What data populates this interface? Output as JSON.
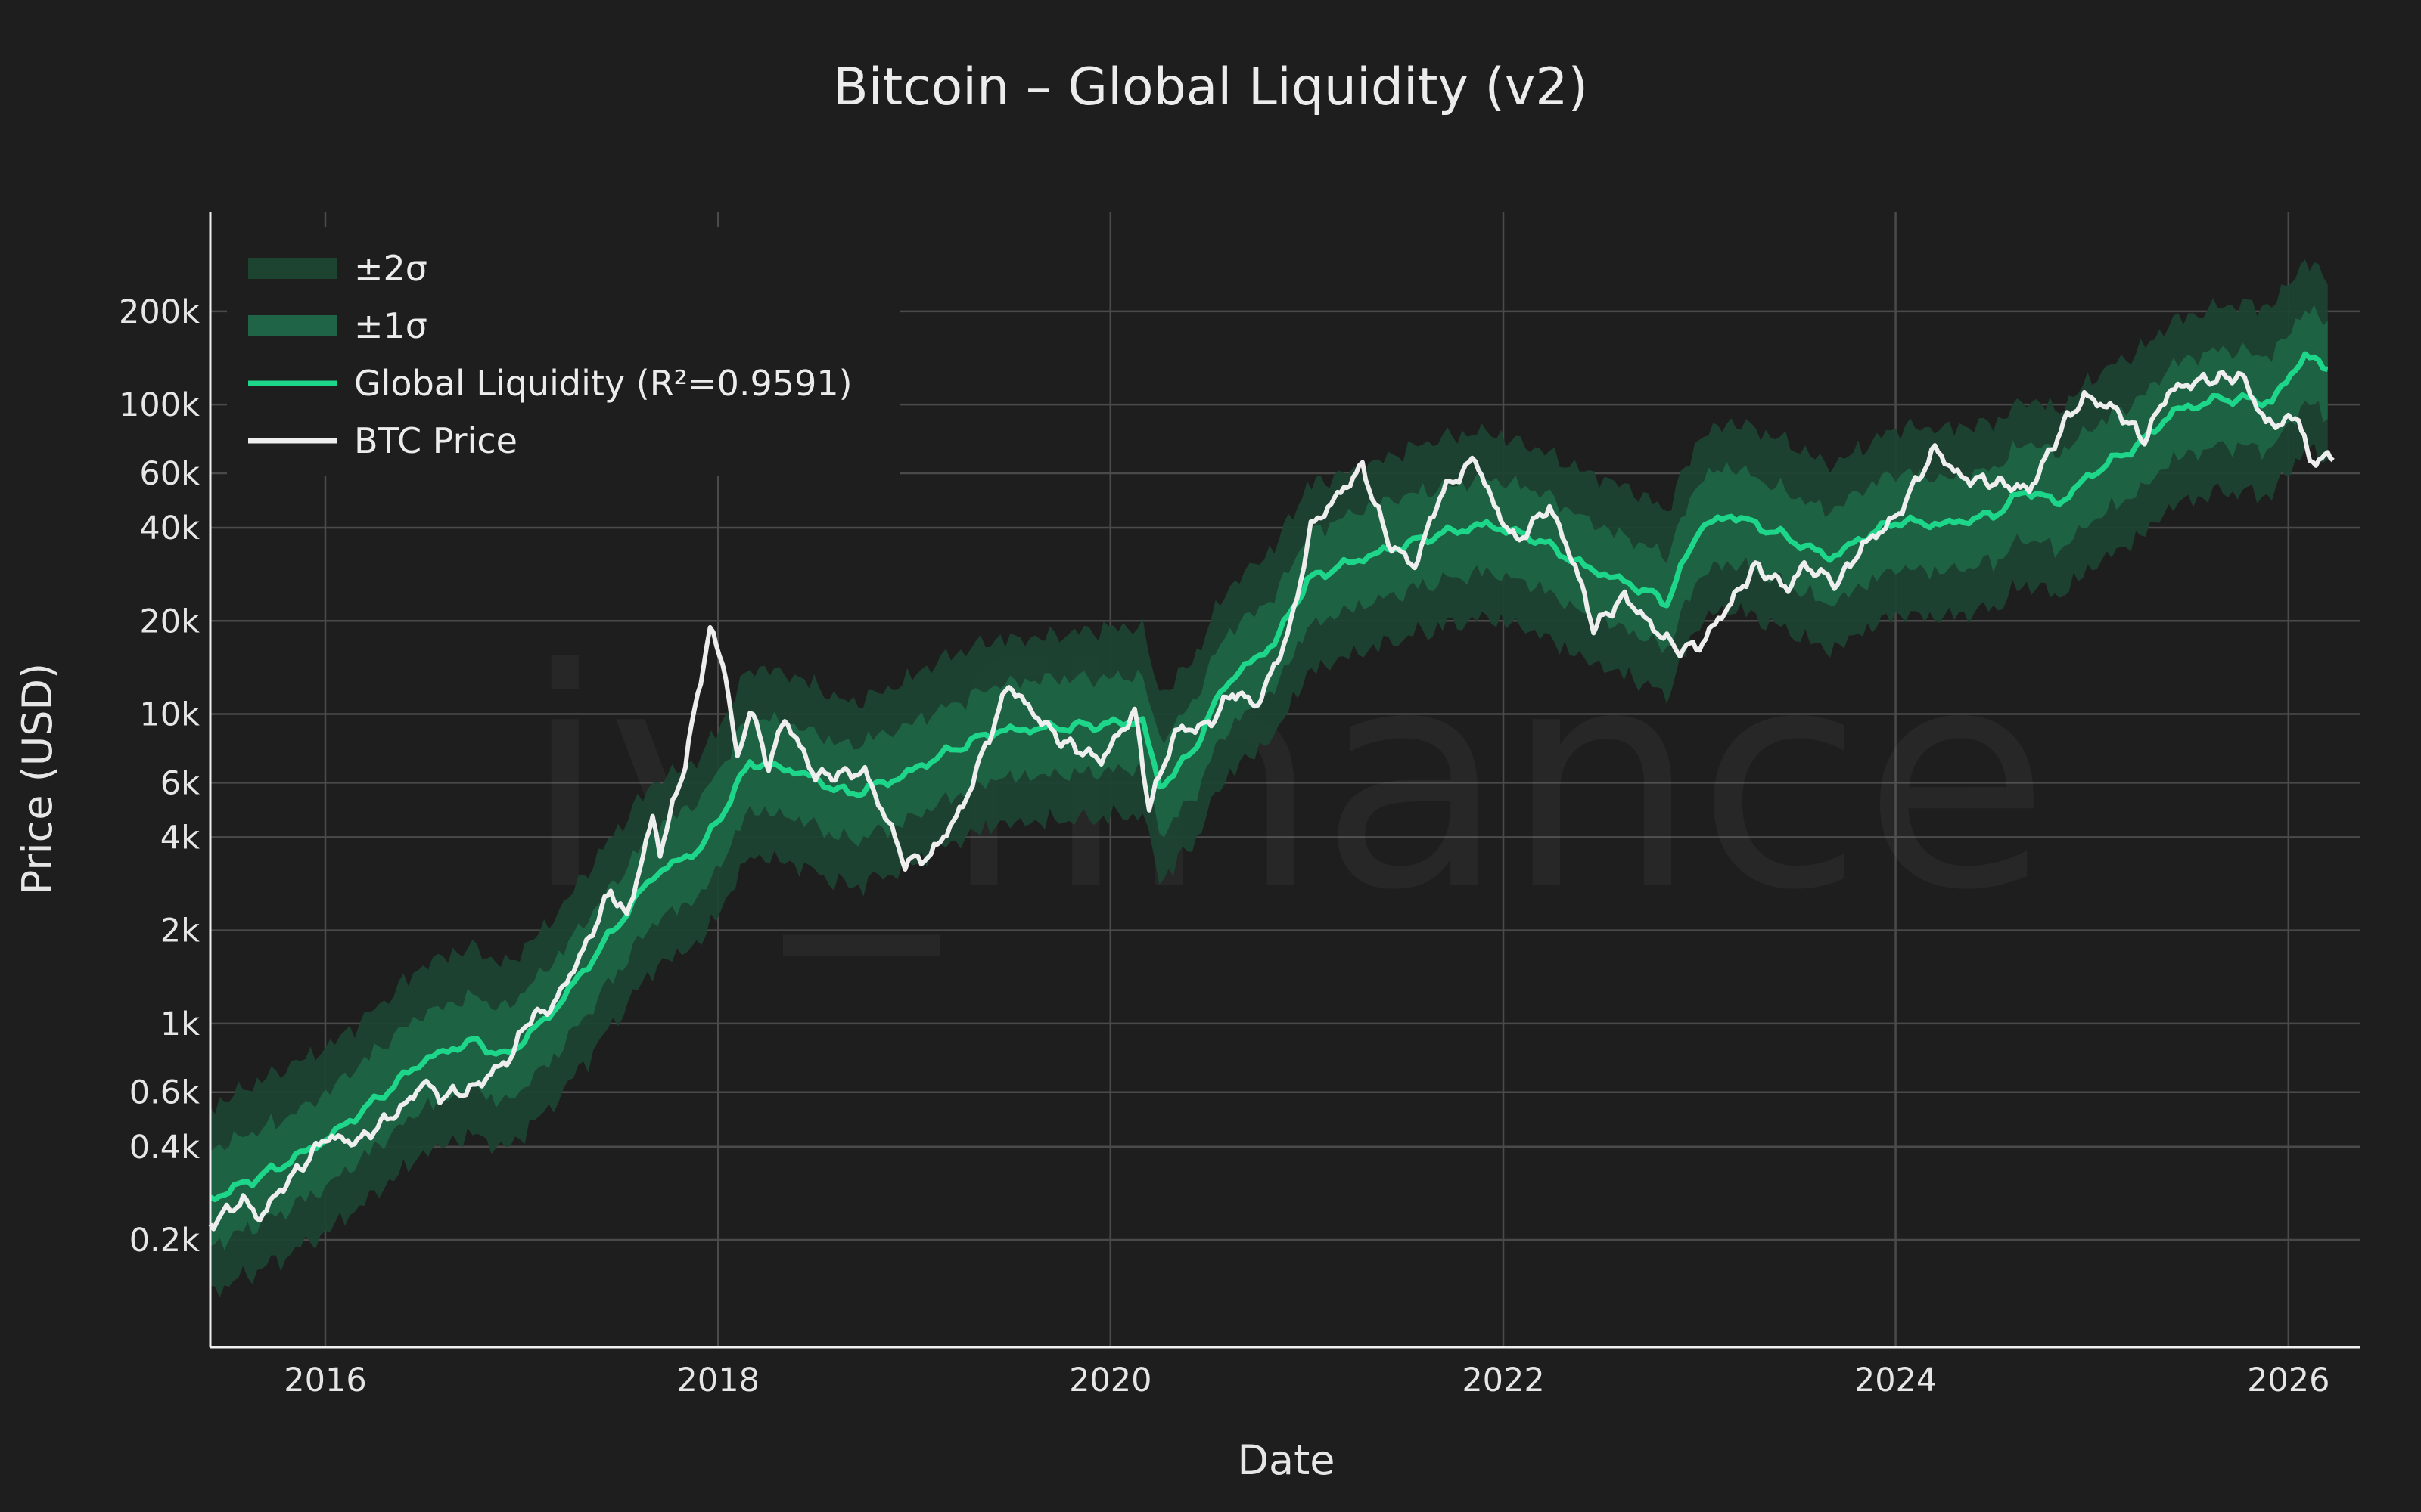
{
  "colors": {
    "background": "#1e1e1e",
    "grid": "#4a4a4a",
    "axis": "#f0f0f0",
    "band2": "#1d4331",
    "band1": "#1f6446",
    "liquidity": "#1ed68a",
    "price": "#eeeeee"
  },
  "watermark": "iv_finance",
  "chart_data": {
    "type": "line",
    "title": "Bitcoin – Global Liquidity (v2)",
    "xlabel": "Date",
    "ylabel": "Price (USD)",
    "y_scale": "log",
    "xlim": [
      "2015-06-01",
      "2026-05-15"
    ],
    "ylim": [
      90,
      420000
    ],
    "grid": true,
    "legend_position": "top-left",
    "x_ticks": [
      {
        "value": "2016-01-01",
        "label": "2016"
      },
      {
        "value": "2018-01-01",
        "label": "2018"
      },
      {
        "value": "2020-01-01",
        "label": "2020"
      },
      {
        "value": "2022-01-01",
        "label": "2022"
      },
      {
        "value": "2024-01-01",
        "label": "2024"
      },
      {
        "value": "2026-01-01",
        "label": "2026"
      }
    ],
    "y_ticks": [
      {
        "value": 200,
        "label": "0.2k"
      },
      {
        "value": 400,
        "label": "0.4k"
      },
      {
        "value": 600,
        "label": "0.6k"
      },
      {
        "value": 1000,
        "label": "1k"
      },
      {
        "value": 2000,
        "label": "2k"
      },
      {
        "value": 4000,
        "label": "4k"
      },
      {
        "value": 6000,
        "label": "6k"
      },
      {
        "value": 10000,
        "label": "10k"
      },
      {
        "value": 20000,
        "label": "20k"
      },
      {
        "value": 40000,
        "label": "40k"
      },
      {
        "value": 60000,
        "label": "60k"
      },
      {
        "value": 100000,
        "label": "100k"
      },
      {
        "value": 200000,
        "label": "200k"
      }
    ],
    "legend": [
      {
        "label": "±2σ",
        "kind": "band2"
      },
      {
        "label": "±1σ",
        "kind": "band1"
      },
      {
        "label": "Global Liquidity (R²=0.9591)",
        "kind": "liquidity"
      },
      {
        "label": "BTC Price",
        "kind": "price"
      }
    ],
    "sigma_multipliers": {
      "one_sigma": 1.42,
      "two_sigma": 2.0
    },
    "series": [
      {
        "name": "Global Liquidity (R²=0.9591)",
        "points": [
          [
            "2015-06-01",
            270
          ],
          [
            "2015-10-01",
            340
          ],
          [
            "2016-01-01",
            420
          ],
          [
            "2016-04-01",
            560
          ],
          [
            "2016-07-01",
            760
          ],
          [
            "2016-10-01",
            880
          ],
          [
            "2016-12-01",
            780
          ],
          [
            "2017-03-01",
            1100
          ],
          [
            "2017-06-01",
            1800
          ],
          [
            "2017-09-01",
            3000
          ],
          [
            "2017-12-01",
            3700
          ],
          [
            "2018-01-15",
            5000
          ],
          [
            "2018-03-01",
            7000
          ],
          [
            "2018-06-01",
            6500
          ],
          [
            "2018-09-01",
            5500
          ],
          [
            "2018-12-01",
            6200
          ],
          [
            "2019-03-01",
            7500
          ],
          [
            "2019-06-01",
            8800
          ],
          [
            "2019-09-01",
            9000
          ],
          [
            "2019-12-01",
            9200
          ],
          [
            "2020-03-01",
            9500
          ],
          [
            "2020-04-01",
            5800
          ],
          [
            "2020-06-01",
            7500
          ],
          [
            "2020-08-01",
            12500
          ],
          [
            "2020-11-01",
            17000
          ],
          [
            "2021-01-01",
            27000
          ],
          [
            "2021-03-01",
            30000
          ],
          [
            "2021-06-01",
            34000
          ],
          [
            "2021-09-01",
            38000
          ],
          [
            "2021-12-01",
            41000
          ],
          [
            "2022-03-01",
            37000
          ],
          [
            "2022-06-01",
            30000
          ],
          [
            "2022-09-01",
            26000
          ],
          [
            "2022-11-01",
            23000
          ],
          [
            "2023-01-01",
            40000
          ],
          [
            "2023-03-01",
            44000
          ],
          [
            "2023-06-01",
            38000
          ],
          [
            "2023-09-01",
            32000
          ],
          [
            "2023-11-01",
            37000
          ],
          [
            "2024-01-01",
            42000
          ],
          [
            "2024-04-01",
            41000
          ],
          [
            "2024-07-01",
            44000
          ],
          [
            "2024-09-01",
            53000
          ],
          [
            "2024-11-01",
            48000
          ],
          [
            "2025-01-01",
            60000
          ],
          [
            "2025-04-01",
            75000
          ],
          [
            "2025-06-01",
            95000
          ],
          [
            "2025-09-01",
            105000
          ],
          [
            "2025-12-01",
            102000
          ],
          [
            "2026-02-01",
            145000
          ],
          [
            "2026-03-15",
            130000
          ]
        ]
      },
      {
        "name": "BTC Price",
        "points": [
          [
            "2015-06-01",
            225
          ],
          [
            "2015-08-01",
            270
          ],
          [
            "2015-09-01",
            235
          ],
          [
            "2015-10-15",
            300
          ],
          [
            "2015-11-15",
            340
          ],
          [
            "2016-01-01",
            430
          ],
          [
            "2016-03-01",
            415
          ],
          [
            "2016-06-01",
            550
          ],
          [
            "2016-07-01",
            650
          ],
          [
            "2016-08-01",
            580
          ],
          [
            "2016-10-01",
            615
          ],
          [
            "2016-12-15",
            790
          ],
          [
            "2017-01-05",
            1000
          ],
          [
            "2017-03-01",
            1150
          ],
          [
            "2017-05-01",
            1800
          ],
          [
            "2017-06-15",
            2700
          ],
          [
            "2017-07-15",
            2200
          ],
          [
            "2017-09-01",
            4600
          ],
          [
            "2017-09-15",
            3600
          ],
          [
            "2017-11-01",
            7000
          ],
          [
            "2017-12-17",
            19000
          ],
          [
            "2018-01-15",
            13500
          ],
          [
            "2018-02-06",
            7000
          ],
          [
            "2018-03-01",
            10500
          ],
          [
            "2018-04-05",
            6800
          ],
          [
            "2018-05-05",
            9700
          ],
          [
            "2018-07-01",
            6300
          ],
          [
            "2018-10-01",
            6500
          ],
          [
            "2018-11-20",
            4200
          ],
          [
            "2018-12-15",
            3300
          ],
          [
            "2019-02-01",
            3500
          ],
          [
            "2019-04-01",
            5000
          ],
          [
            "2019-06-26",
            12500
          ],
          [
            "2019-08-01",
            10500
          ],
          [
            "2019-10-01",
            8200
          ],
          [
            "2019-12-15",
            7100
          ],
          [
            "2020-02-15",
            10200
          ],
          [
            "2020-03-13",
            5000
          ],
          [
            "2020-05-01",
            8800
          ],
          [
            "2020-07-01",
            9200
          ],
          [
            "2020-08-15",
            11800
          ],
          [
            "2020-10-01",
            10700
          ],
          [
            "2020-12-01",
            19000
          ],
          [
            "2021-01-08",
            40000
          ],
          [
            "2021-02-15",
            48000
          ],
          [
            "2021-04-14",
            63000
          ],
          [
            "2021-06-01",
            36000
          ],
          [
            "2021-07-20",
            30000
          ],
          [
            "2021-09-05",
            51000
          ],
          [
            "2021-11-10",
            67000
          ],
          [
            "2021-12-15",
            47000
          ],
          [
            "2022-01-25",
            36000
          ],
          [
            "2022-03-28",
            47000
          ],
          [
            "2022-05-15",
            30000
          ],
          [
            "2022-06-18",
            19000
          ],
          [
            "2022-08-15",
            24000
          ],
          [
            "2022-10-01",
            19500
          ],
          [
            "2022-11-20",
            16200
          ],
          [
            "2023-01-01",
            16600
          ],
          [
            "2023-03-01",
            23000
          ],
          [
            "2023-04-15",
            30000
          ],
          [
            "2023-06-15",
            25500
          ],
          [
            "2023-07-15",
            30200
          ],
          [
            "2023-09-15",
            26500
          ],
          [
            "2023-11-01",
            35000
          ],
          [
            "2024-01-01",
            43000
          ],
          [
            "2024-03-14",
            72000
          ],
          [
            "2024-05-01",
            58000
          ],
          [
            "2024-07-05",
            56000
          ],
          [
            "2024-09-06",
            53000
          ],
          [
            "2024-11-15",
            90000
          ],
          [
            "2024-12-17",
            106000
          ],
          [
            "2025-02-15",
            96000
          ],
          [
            "2025-04-08",
            77000
          ],
          [
            "2025-05-22",
            110000
          ],
          [
            "2025-07-15",
            119000
          ],
          [
            "2025-10-06",
            124000
          ],
          [
            "2025-11-20",
            87000
          ],
          [
            "2026-01-01",
            88000
          ],
          [
            "2026-01-20",
            93000
          ],
          [
            "2026-02-10",
            64000
          ],
          [
            "2026-03-10",
            69000
          ],
          [
            "2026-03-25",
            66000
          ]
        ]
      }
    ]
  }
}
